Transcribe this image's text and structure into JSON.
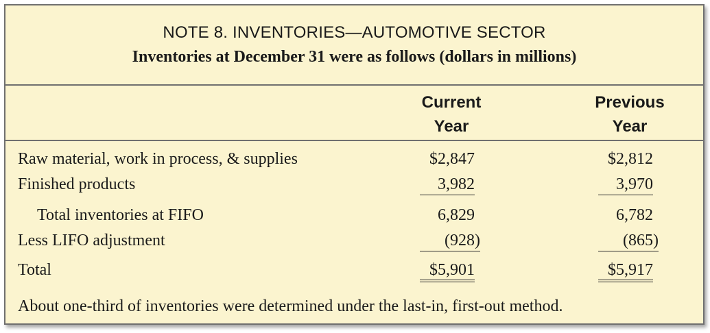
{
  "header": {
    "title": "NOTE 8. INVENTORIES—AUTOMOTIVE SECTOR",
    "subtitle": "Inventories at December 31 were as follows (dollars in millions)"
  },
  "columns": [
    {
      "line1": "Current",
      "line2": "Year"
    },
    {
      "line1": "Previous",
      "line2": "Year"
    }
  ],
  "rows": [
    {
      "label": "Raw material, work in process, & supplies",
      "current": "$2,847",
      "previous": "$2,812"
    },
    {
      "label": "Finished products",
      "current": "3,982",
      "previous": "3,970"
    },
    {
      "label": "Total inventories at FIFO",
      "current": "6,829",
      "previous": "6,782"
    },
    {
      "label": "Less LIFO adjustment",
      "current": "(928)",
      "previous": "(865)"
    },
    {
      "label": "Total",
      "current": "$5,901",
      "previous": "$5,917"
    }
  ],
  "footnote": "About one-third of inventories were determined under the last-in, first-out method."
}
